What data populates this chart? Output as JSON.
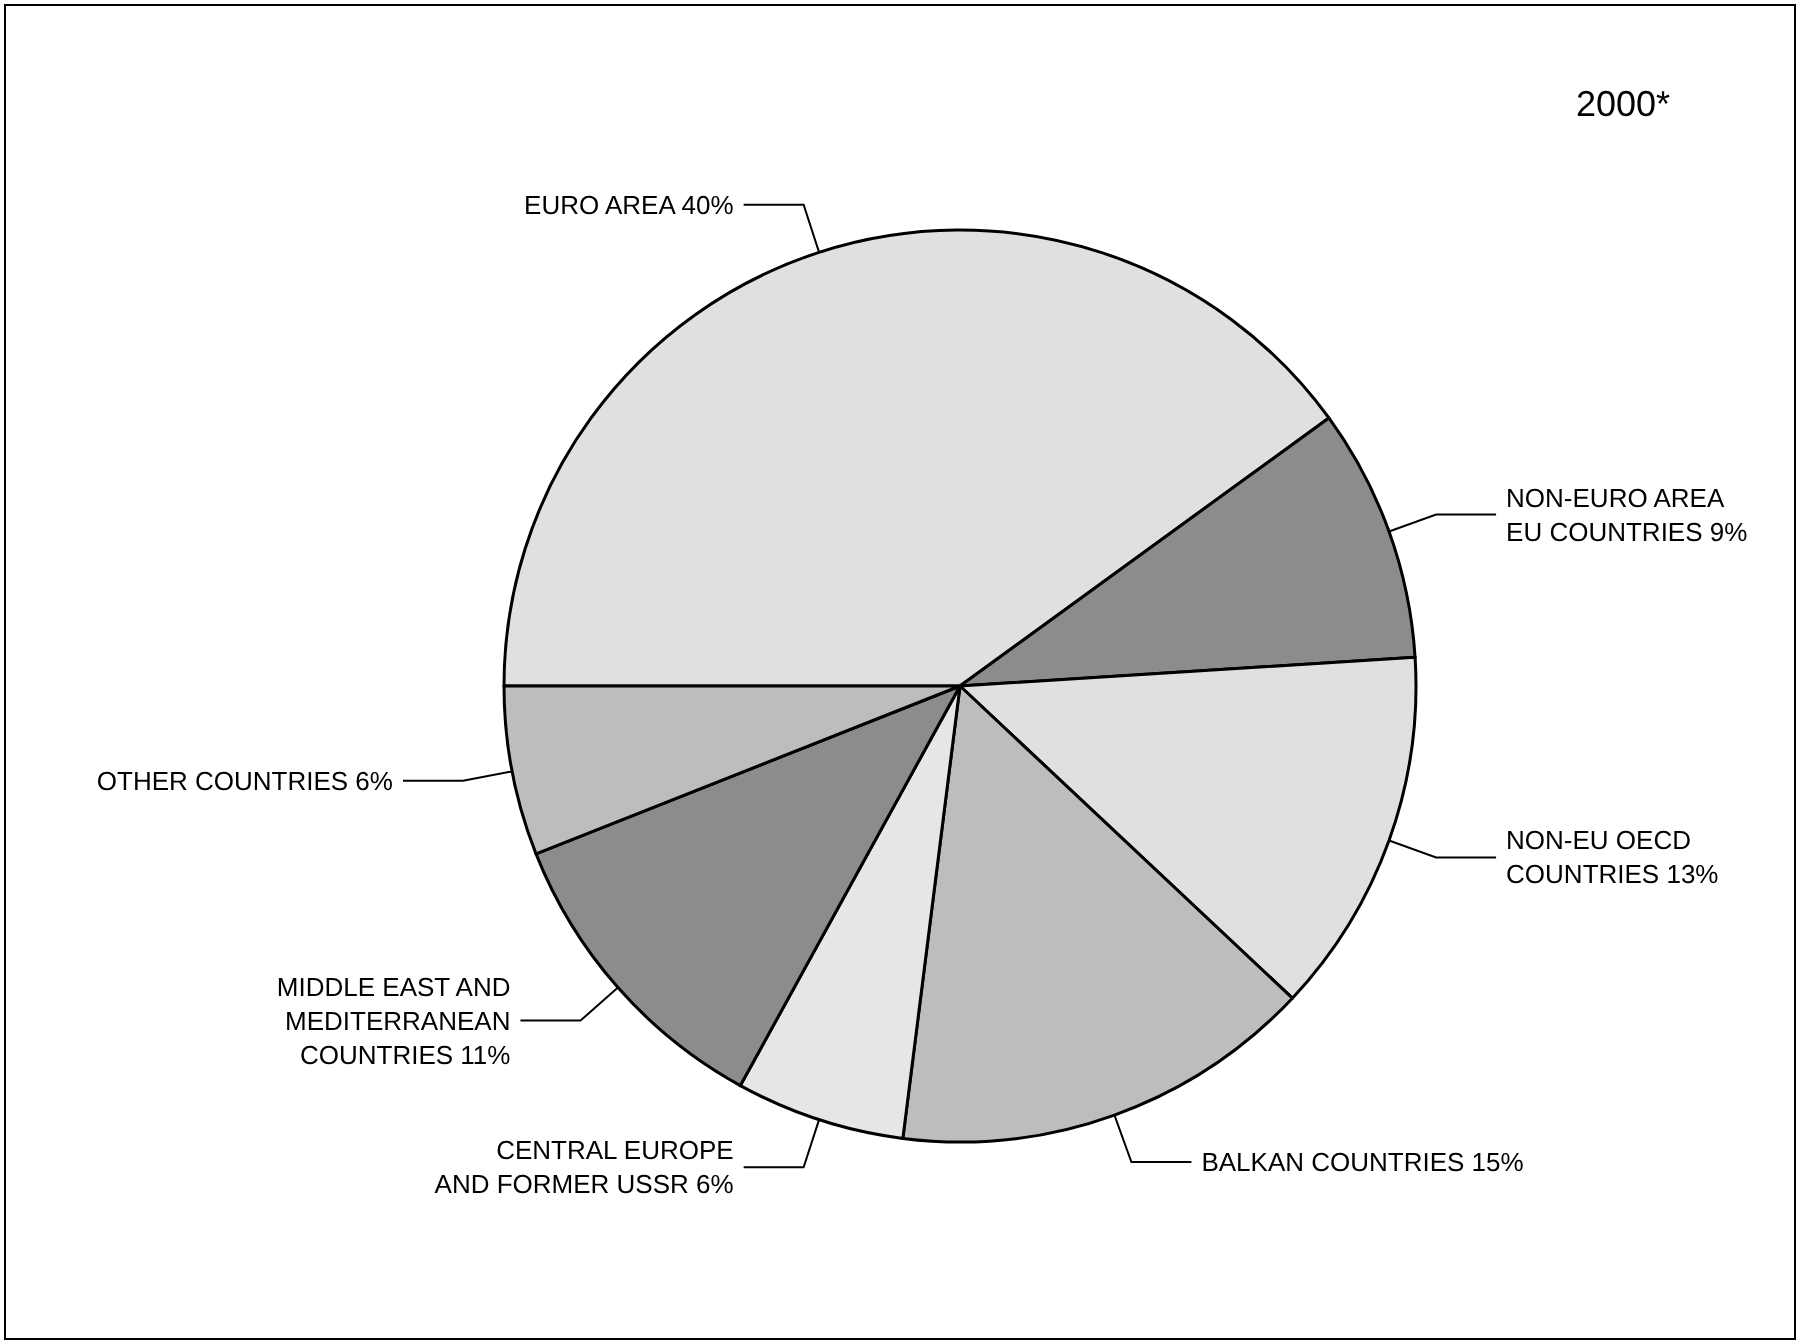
{
  "chart_data": {
    "type": "pie",
    "title": "2000*",
    "categories": [
      "EURO AREA",
      "NON-EURO AREA\nEU COUNTRIES",
      "NON-EU OECD\nCOUNTRIES",
      "BALKAN COUNTRIES",
      "CENTRAL EUROPE\nAND FORMER USSR",
      "MIDDLE EAST AND\nMEDITERRANEAN\nCOUNTRIES",
      "OTHER COUNTRIES"
    ],
    "values": [
      40,
      9,
      13,
      15,
      6,
      11,
      6
    ],
    "colors": [
      "#e0e0e0",
      "#8c8c8c",
      "#e0e0e0",
      "#bdbdbd",
      "#e6e6e6",
      "#8c8c8c",
      "#bdbdbd"
    ],
    "value_labels": [
      "40%",
      "9%",
      "13%",
      "15%",
      "6%",
      "11%",
      "6%"
    ],
    "legend": false
  }
}
